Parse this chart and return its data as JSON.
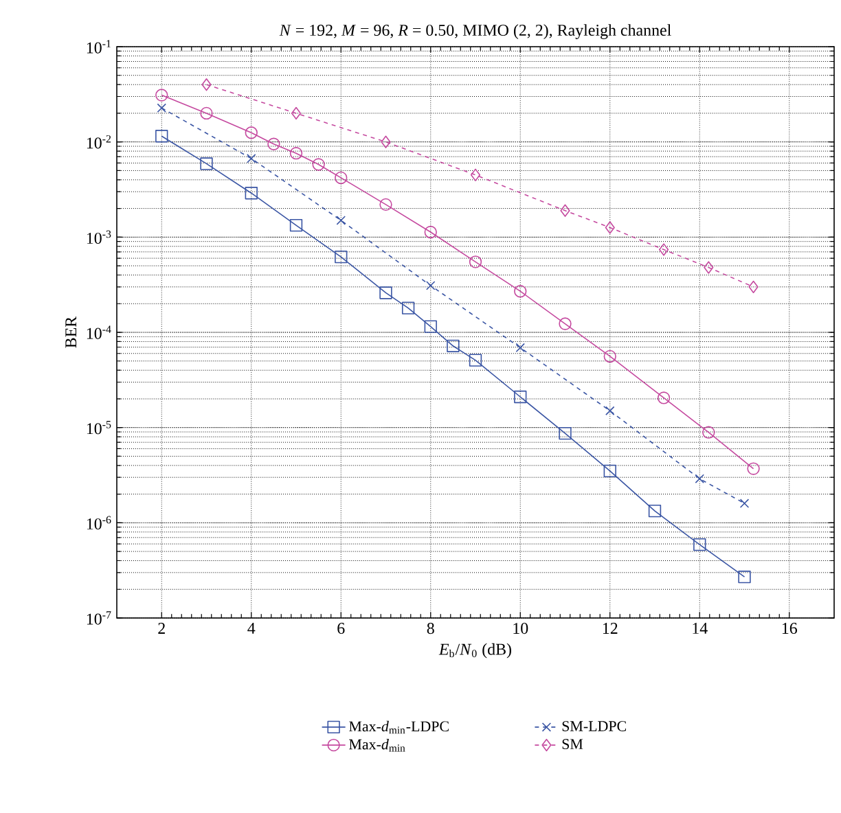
{
  "chart_data": {
    "type": "line",
    "title": "*N* = 192, *M* = 96, *R* = 0.50, MIMO (2, 2), Rayleigh channel",
    "xlabel": "*E*$_{b}$/*N*$_{0}$ (dB)",
    "ylabel": "BER",
    "log": "y",
    "grid": true,
    "legend": "bottom",
    "xlim": [
      1,
      17
    ],
    "xticks": [
      2,
      4,
      6,
      8,
      10,
      12,
      14,
      16
    ],
    "ylim": [
      1e-07,
      0.1
    ],
    "yticks": [
      {
        "value": 1e-07,
        "label": "10$^{-7}$"
      },
      {
        "value": 1e-06,
        "label": "10$^{-6}$"
      },
      {
        "value": 1e-05,
        "label": "10$^{-5}$"
      },
      {
        "value": 0.0001,
        "label": "10$^{-4}$"
      },
      {
        "value": 0.001,
        "label": "10$^{-3}$"
      },
      {
        "value": 0.01,
        "label": "10$^{-2}$"
      },
      {
        "value": 0.1,
        "label": "10$^{-1}$"
      }
    ],
    "series": [
      {
        "name": "Max-*d*$_{min}$-LDPC",
        "color": "#3a55a4",
        "marker": "square",
        "line_style": "solid",
        "x": [
          2,
          3,
          4,
          5,
          6,
          7,
          7.5,
          8,
          8.5,
          9,
          10,
          11,
          12,
          13,
          14,
          15
        ],
        "values": [
          0.0115,
          0.0059,
          0.0029,
          0.00133,
          0.00062,
          0.00026,
          0.00018,
          0.000115,
          7.2e-05,
          5.1e-05,
          2.1e-05,
          8.7e-06,
          3.5e-06,
          1.33e-06,
          5.9e-07,
          2.7e-07
        ]
      },
      {
        "name": "SM-LDPC",
        "color": "#3a55a4",
        "marker": "cross",
        "line_style": "dashed",
        "x": [
          2,
          4,
          6,
          8,
          10,
          12,
          14,
          15
        ],
        "values": [
          0.0227,
          0.0067,
          0.0015,
          0.00031,
          6.9e-05,
          1.5e-05,
          2.9e-06,
          1.6e-06
        ]
      },
      {
        "name": "Max-*d*$_{min}$",
        "color": "#c5499f",
        "marker": "circle",
        "line_style": "solid",
        "x": [
          2,
          3,
          4,
          4.5,
          5,
          5.5,
          6,
          7,
          8,
          9,
          10,
          11,
          12,
          13.2,
          14.2,
          15.2
        ],
        "values": [
          0.031,
          0.02,
          0.0125,
          0.0095,
          0.0076,
          0.0058,
          0.0042,
          0.0022,
          0.00113,
          0.00055,
          0.00027,
          0.000123,
          5.6e-05,
          2.05e-05,
          8.9e-06,
          3.7e-06
        ]
      },
      {
        "name": "SM",
        "color": "#c5499f",
        "marker": "diamond",
        "line_style": "dashed",
        "x": [
          3,
          5,
          7,
          9,
          11,
          12,
          13.2,
          14.2,
          15.2
        ],
        "values": [
          0.04,
          0.02,
          0.01,
          0.0045,
          0.0019,
          0.00126,
          0.00074,
          0.00048,
          0.0003
        ]
      }
    ]
  }
}
